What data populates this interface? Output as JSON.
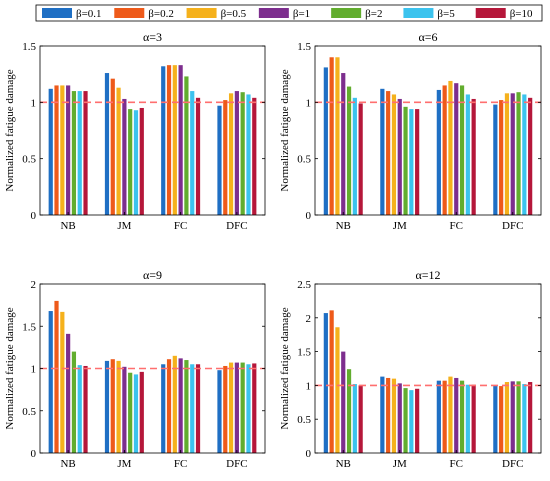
{
  "legend": {
    "position": "top",
    "entries": [
      "β=0.1",
      "β=0.2",
      "β=0.5",
      "β=1",
      "β=2",
      "β=5",
      "β=10"
    ]
  },
  "colors": {
    "β=0.1": "#1f6fc4",
    "β=0.2": "#ee5a1a",
    "β=0.5": "#f5b11c",
    "β=1": "#7d2e8e",
    "β=2": "#62ad2e",
    "β=5": "#3cc3ee",
    "β=10": "#b5173a",
    "reference_line": "#ff6f6f"
  },
  "chart_data": [
    {
      "type": "bar",
      "title": "α=3",
      "ylabel": "Normalized fatigue damage",
      "xlabel": "",
      "categories": [
        "NB",
        "JM",
        "FC",
        "DFC"
      ],
      "ylim": [
        0,
        1.5
      ],
      "yticks": [
        "0",
        "0.5",
        "1",
        "1.5"
      ],
      "reference_line": 1,
      "series": [
        {
          "name": "β=0.1",
          "values": [
            1.12,
            1.26,
            1.32,
            0.97
          ]
        },
        {
          "name": "β=0.2",
          "values": [
            1.15,
            1.21,
            1.33,
            1.02
          ]
        },
        {
          "name": "β=0.5",
          "values": [
            1.15,
            1.13,
            1.33,
            1.08
          ]
        },
        {
          "name": "β=1",
          "values": [
            1.15,
            1.03,
            1.33,
            1.1
          ]
        },
        {
          "name": "β=2",
          "values": [
            1.1,
            0.94,
            1.23,
            1.09
          ]
        },
        {
          "name": "β=5",
          "values": [
            1.1,
            0.93,
            1.1,
            1.07
          ]
        },
        {
          "name": "β=10",
          "values": [
            1.1,
            0.95,
            1.04,
            1.04
          ]
        }
      ]
    },
    {
      "type": "bar",
      "title": "α=6",
      "ylabel": "Normalized fatigue damage",
      "xlabel": "",
      "categories": [
        "NB",
        "JM",
        "FC",
        "DFC"
      ],
      "ylim": [
        0,
        1.5
      ],
      "yticks": [
        "0",
        "0.5",
        "1",
        "1.5"
      ],
      "reference_line": 1,
      "series": [
        {
          "name": "β=0.1",
          "values": [
            1.31,
            1.12,
            1.11,
            0.98
          ]
        },
        {
          "name": "β=0.2",
          "values": [
            1.4,
            1.1,
            1.15,
            1.02
          ]
        },
        {
          "name": "β=0.5",
          "values": [
            1.4,
            1.07,
            1.19,
            1.08
          ]
        },
        {
          "name": "β=1",
          "values": [
            1.26,
            1.03,
            1.17,
            1.08
          ]
        },
        {
          "name": "β=2",
          "values": [
            1.14,
            0.96,
            1.15,
            1.09
          ]
        },
        {
          "name": "β=5",
          "values": [
            1.04,
            0.94,
            1.07,
            1.07
          ]
        },
        {
          "name": "β=10",
          "values": [
            0.99,
            0.94,
            1.03,
            1.04
          ]
        }
      ]
    },
    {
      "type": "bar",
      "title": "α=9",
      "ylabel": "Normalized fatigue damage",
      "xlabel": "",
      "categories": [
        "NB",
        "JM",
        "FC",
        "DFC"
      ],
      "ylim": [
        0,
        2
      ],
      "yticks": [
        "0",
        "0.5",
        "1",
        "1.5",
        "2"
      ],
      "reference_line": 1,
      "series": [
        {
          "name": "β=0.1",
          "values": [
            1.68,
            1.09,
            1.05,
            0.98
          ]
        },
        {
          "name": "β=0.2",
          "values": [
            1.8,
            1.11,
            1.11,
            1.03
          ]
        },
        {
          "name": "β=0.5",
          "values": [
            1.67,
            1.09,
            1.15,
            1.07
          ]
        },
        {
          "name": "β=1",
          "values": [
            1.41,
            1.02,
            1.12,
            1.07
          ]
        },
        {
          "name": "β=2",
          "values": [
            1.2,
            0.95,
            1.1,
            1.07
          ]
        },
        {
          "name": "β=5",
          "values": [
            1.04,
            0.93,
            1.05,
            1.05
          ]
        },
        {
          "name": "β=10",
          "values": [
            1.03,
            0.96,
            1.05,
            1.06
          ]
        }
      ]
    },
    {
      "type": "bar",
      "title": "α=12",
      "ylabel": "Normalized fatigue damage",
      "xlabel": "",
      "categories": [
        "NB",
        "JM",
        "FC",
        "DFC"
      ],
      "ylim": [
        0,
        2.5
      ],
      "yticks": [
        "0",
        "0.5",
        "1",
        "1.5",
        "2",
        "2.5"
      ],
      "reference_line": 1,
      "series": [
        {
          "name": "β=0.1",
          "values": [
            2.07,
            1.13,
            1.07,
            1.0
          ]
        },
        {
          "name": "β=0.2",
          "values": [
            2.11,
            1.11,
            1.07,
            0.99
          ]
        },
        {
          "name": "β=0.5",
          "values": [
            1.86,
            1.1,
            1.13,
            1.05
          ]
        },
        {
          "name": "β=1",
          "values": [
            1.5,
            1.03,
            1.11,
            1.06
          ]
        },
        {
          "name": "β=2",
          "values": [
            1.24,
            0.96,
            1.07,
            1.06
          ]
        },
        {
          "name": "β=5",
          "values": [
            1.02,
            0.93,
            1.01,
            1.02
          ]
        },
        {
          "name": "β=10",
          "values": [
            1.0,
            0.95,
            1.01,
            1.05
          ]
        }
      ]
    }
  ]
}
